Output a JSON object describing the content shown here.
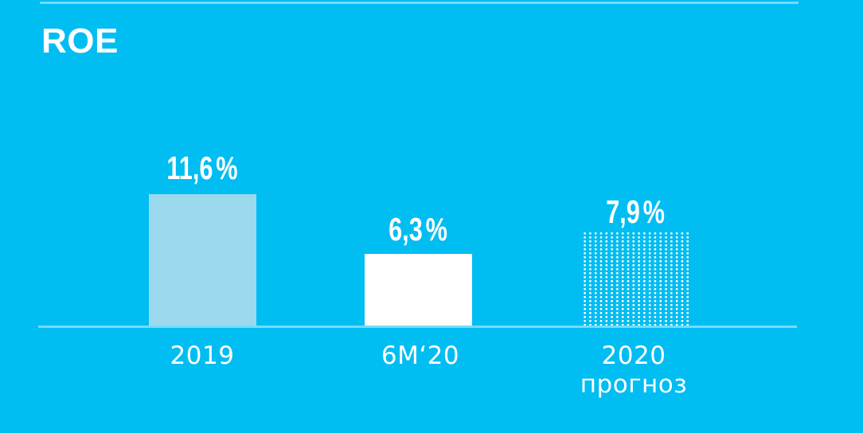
{
  "title": "ROE",
  "colors": {
    "background": "#00bdf2",
    "bar_2019": "#9cd9ef",
    "bar_6m20": "#ffffff",
    "bar_forecast_dots": "#ffffff",
    "divider_line": "rgba(255,255,255,0.45)",
    "text": "#ffffff"
  },
  "chart_data": {
    "type": "bar",
    "title": "ROE",
    "unit": "%",
    "categories": [
      "2019",
      "6М‘20",
      "2020 прогноз"
    ],
    "values": [
      11.6,
      6.3,
      7.9
    ],
    "value_labels": [
      "11,6%",
      "6,3%",
      "7,9%"
    ],
    "bar_styles": [
      "solid light-blue",
      "solid white",
      "dotted white (forecast)"
    ],
    "xlabel": "",
    "ylabel": "",
    "grid": false,
    "legend": false,
    "axis_line": "horizontal baseline only, no ticks"
  },
  "bars": [
    {
      "category": "2019",
      "value": "11,6",
      "unit": "%"
    },
    {
      "category": "6М‘20",
      "value": "6,3",
      "unit": "%"
    },
    {
      "category": "2020",
      "category_line2": "прогноз",
      "value": "7,9",
      "unit": "%"
    }
  ]
}
